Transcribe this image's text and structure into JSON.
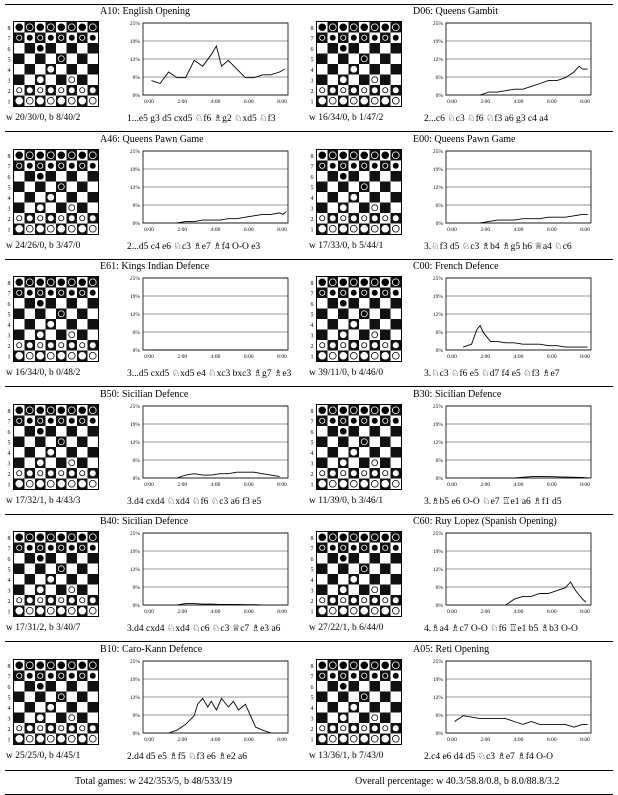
{
  "panels": [
    {
      "eco": "A10: English Opening",
      "record": "w 20/30/0, b 8/40/2",
      "moves": "1...e5 g3 d5 cxd5 ♘f6 ♗g2 ♘xd5 ♘f3"
    },
    {
      "eco": "D06: Queens Gambit",
      "record": "w 16/34/0, b 1/47/2",
      "moves": "2...c6 ♘c3 ♘f6 ♘f3 a6 g3 c4 a4"
    },
    {
      "eco": "A46: Queens Pawn Game",
      "record": "w 24/26/0, b 3/47/0",
      "moves": "2...d5 c4 e6 ♘c3 ♗e7 ♗f4 O-O e3"
    },
    {
      "eco": "E00: Queens Pawn Game",
      "record": "w 17/33/0, b 5/44/1",
      "moves": "3.♘f3 d5 ♘c3 ♗b4 ♗g5 h6 ♕a4 ♘c6"
    },
    {
      "eco": "E61: Kings Indian Defence",
      "record": "w 16/34/0, b 0/48/2",
      "moves": "3...d5 cxd5 ♘xd5 e4 ♘xc3 bxc3 ♗g7 ♗e3"
    },
    {
      "eco": "C00: French Defence",
      "record": "w 39/11/0, b 4/46/0",
      "moves": "3.♘c3 ♘f6 e5 ♘d7 f4 e5 ♘f3 ♗e7"
    },
    {
      "eco": "B50: Sicilian Defence",
      "record": "w 17/32/1, b 4/43/3",
      "moves": "3.d4 cxd4 ♘xd4 ♘f6 ♘c3 a6 f3 e5"
    },
    {
      "eco": "B30: Sicilian Defence",
      "record": "w 11/39/0, b 3/46/1",
      "moves": "3.♗b5 e6 O-O ♘e7 ♖e1 a6 ♗f1 d5"
    },
    {
      "eco": "B40: Sicilian Defence",
      "record": "w 17/31/2, b 3/40/7",
      "moves": "3.d4 cxd4 ♘xd4 ♘c6 ♘c3 ♕c7 ♗e3 a6"
    },
    {
      "eco": "C60: Ruy Lopez (Spanish Opening)",
      "record": "w 27/22/1, b 6/44/0",
      "moves": "4.♗a4 ♗c7 O-O ♘f6 ♖e1 b5 ♗b3 O-O"
    },
    {
      "eco": "B10: Caro-Kann Defence",
      "record": "w 25/25/0, b 4/45/1",
      "moves": "2.d4 d5 e5 ♗f5 ♘f3 e6 ♗e2 a6"
    },
    {
      "eco": "A05: Reti Opening",
      "record": "w 13/36/1, b 7/43/0",
      "moves": "2.c4 e6 d4 d5 ♘c3 ♗e7 ♗f4 O-O"
    }
  ],
  "board_labels": {
    "ranks": [
      "8",
      "7",
      "6",
      "5",
      "4",
      "3",
      "2",
      "1"
    ],
    "files": [
      "a",
      "b",
      "c",
      "d",
      "e",
      "f",
      "g",
      "h"
    ]
  },
  "chart_data": {
    "type": "line",
    "y_ticks": [
      "25%",
      "19%",
      "12%",
      "6%",
      "0%"
    ],
    "x_ticks": [
      "0:00",
      "2:00",
      "4:00",
      "6:00",
      "8:00"
    ],
    "ylim": [
      0,
      25
    ],
    "xlim": [
      0,
      8.5
    ],
    "line_color": "#000000",
    "series": [
      {
        "x": [
          0.5,
          1,
          1.5,
          2,
          2.5,
          3,
          3.5,
          4,
          4.3,
          4.6,
          5,
          5.5,
          6,
          6.5,
          7,
          7.5,
          8,
          8.3
        ],
        "y": [
          5,
          4,
          8,
          6,
          6,
          12,
          10,
          14,
          17,
          10,
          12,
          9,
          6,
          6,
          7,
          7,
          8,
          9
        ]
      },
      {
        "x": [
          2,
          2.5,
          3,
          3.5,
          4,
          4.5,
          5,
          5.5,
          6,
          6.5,
          7,
          7.5,
          7.8,
          8,
          8.3
        ],
        "y": [
          0,
          1,
          1,
          1.5,
          2,
          2,
          3,
          4,
          5,
          5,
          6,
          8,
          10,
          9,
          9
        ]
      },
      {
        "x": [
          2,
          2.5,
          3,
          3.5,
          4,
          4.5,
          5,
          5.5,
          6,
          6.5,
          7,
          7.5,
          8,
          8.2,
          8.4
        ],
        "y": [
          0,
          0.5,
          0.5,
          1,
          1,
          1,
          1.5,
          1.5,
          2,
          2.5,
          3,
          3,
          3.5,
          3,
          4
        ]
      },
      {
        "x": [
          2,
          2.5,
          3,
          3.5,
          4,
          4.5,
          5,
          5.5,
          6,
          6.5,
          7,
          7.5,
          8,
          8.3
        ],
        "y": [
          0,
          0.5,
          1,
          1,
          1,
          1.5,
          1.5,
          1.5,
          2,
          2,
          2,
          2.5,
          3,
          3
        ]
      },
      {
        "x": [
          0.5,
          1,
          2,
          3,
          4,
          5,
          6,
          7,
          8,
          8.4
        ],
        "y": [
          0,
          0,
          0,
          0,
          0,
          0,
          0,
          0,
          0,
          0
        ]
      },
      {
        "x": [
          1,
          1.5,
          1.8,
          2,
          2.2,
          2.6,
          3,
          3.5,
          4,
          4.5,
          5,
          5.5,
          6,
          6.5,
          7,
          7.5,
          8,
          8.3
        ],
        "y": [
          1,
          2,
          7,
          8.5,
          6,
          3,
          3,
          2.5,
          2.5,
          2,
          2,
          2,
          1.5,
          1.5,
          1,
          1,
          1,
          1
        ]
      },
      {
        "x": [
          2,
          2.5,
          3,
          3.5,
          4,
          4.5,
          5,
          5.5,
          6,
          6.5,
          7,
          7.5,
          8
        ],
        "y": [
          0,
          1,
          1.5,
          1,
          1,
          1.5,
          1.5,
          2,
          2,
          2,
          1.5,
          1,
          0.5
        ]
      },
      {
        "x": [
          2,
          3,
          4,
          5,
          6,
          7,
          8,
          8.3
        ],
        "y": [
          0,
          0,
          0,
          0.5,
          0.5,
          0.3,
          0.2,
          0
        ]
      },
      {
        "x": [
          2,
          2.5,
          3,
          3.5,
          4,
          4.5,
          5,
          5.5,
          6,
          6.5,
          7
        ],
        "y": [
          0,
          0.5,
          0.5,
          0.3,
          0.3,
          0.2,
          0.2,
          0.2,
          0.1,
          0.1,
          0
        ]
      },
      {
        "x": [
          3.5,
          4,
          4.5,
          5,
          5.5,
          6,
          6.5,
          7,
          7.3,
          7.6,
          8,
          8.2
        ],
        "y": [
          0,
          2,
          3,
          3,
          4,
          4,
          5,
          6,
          8,
          5,
          2,
          1
        ]
      },
      {
        "x": [
          1.5,
          2,
          2.5,
          3,
          3.2,
          3.5,
          3.8,
          4,
          4.3,
          4.6,
          5,
          5.3,
          5.6,
          6,
          6.3,
          6.6,
          7,
          7.5
        ],
        "y": [
          0,
          1,
          3,
          6,
          10,
          12,
          9,
          11,
          8,
          12,
          9,
          11,
          8,
          10,
          6,
          2,
          1,
          0
        ]
      },
      {
        "x": [
          0.5,
          1,
          2,
          3,
          3.5,
          4,
          4.5,
          5,
          5.5,
          6,
          6.5,
          7,
          7.5,
          8,
          8.3
        ],
        "y": [
          4,
          6,
          5,
          5,
          5,
          4,
          3,
          4,
          3,
          3,
          3,
          3,
          2,
          3,
          3
        ]
      }
    ]
  },
  "footer": {
    "total": "Total games: w 242/353/5, b 48/533/19",
    "overall": "Overall percentage: w 40.3/58.8/0.8, b 8.0/88.8/3.2"
  }
}
